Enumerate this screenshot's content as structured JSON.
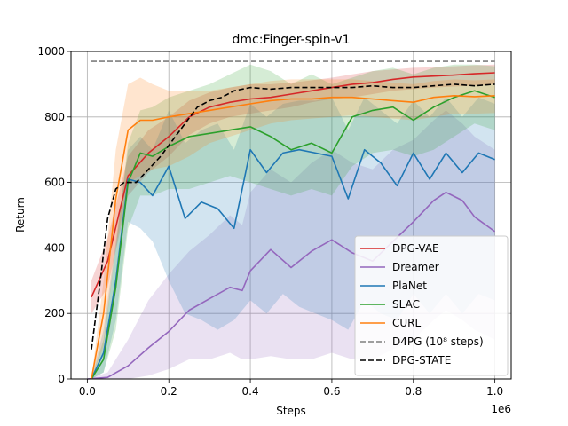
{
  "chart_data": {
    "type": "line",
    "title": "dmc:Finger-spin-v1",
    "xlabel": "Steps",
    "ylabel": "Return",
    "x_offset_label": "1e6",
    "xlim": [
      -0.04,
      1.04
    ],
    "ylim": [
      0,
      1000
    ],
    "xticks": [
      0.0,
      0.2,
      0.4,
      0.6,
      0.8,
      1.0
    ],
    "xtick_labels": [
      "0.0",
      "0.2",
      "0.4",
      "0.6",
      "0.8",
      "1.0"
    ],
    "yticks": [
      0,
      200,
      400,
      600,
      800,
      1000
    ],
    "ytick_labels": [
      "0",
      "200",
      "400",
      "600",
      "800",
      "1000"
    ],
    "grid": true,
    "legend_position": "lower-right",
    "series": [
      {
        "name": "DPG-VAE",
        "color": "#d62728",
        "style": "solid",
        "x": [
          0.01,
          0.05,
          0.1,
          0.15,
          0.2,
          0.25,
          0.3,
          0.35,
          0.4,
          0.45,
          0.5,
          0.55,
          0.6,
          0.65,
          0.7,
          0.75,
          0.8,
          0.85,
          0.9,
          0.95,
          1.0
        ],
        "y": [
          250,
          360,
          620,
          690,
          740,
          800,
          830,
          845,
          855,
          860,
          870,
          880,
          890,
          900,
          905,
          915,
          922,
          925,
          928,
          932,
          935
        ],
        "lower": [
          200,
          280,
          560,
          630,
          680,
          745,
          780,
          800,
          810,
          820,
          830,
          845,
          855,
          860,
          870,
          880,
          885,
          890,
          893,
          896,
          900
        ],
        "upper": [
          300,
          430,
          680,
          760,
          800,
          850,
          875,
          890,
          900,
          900,
          905,
          912,
          920,
          930,
          940,
          945,
          950,
          952,
          955,
          958,
          960
        ]
      },
      {
        "name": "Dreamer",
        "color": "#9467bd",
        "style": "solid",
        "x": [
          0.0,
          0.05,
          0.1,
          0.15,
          0.2,
          0.25,
          0.3,
          0.35,
          0.38,
          0.4,
          0.45,
          0.5,
          0.55,
          0.6,
          0.65,
          0.7,
          0.75,
          0.8,
          0.85,
          0.88,
          0.92,
          0.95,
          1.0
        ],
        "y": [
          0,
          5,
          40,
          95,
          145,
          210,
          245,
          280,
          270,
          330,
          395,
          340,
          390,
          425,
          385,
          360,
          420,
          480,
          545,
          570,
          545,
          495,
          450
        ],
        "lower": [
          0,
          0,
          0,
          10,
          30,
          60,
          60,
          80,
          60,
          60,
          70,
          60,
          60,
          80,
          60,
          60,
          90,
          120,
          180,
          210,
          180,
          150,
          120
        ],
        "upper": [
          0,
          20,
          120,
          240,
          320,
          390,
          440,
          500,
          470,
          570,
          640,
          600,
          660,
          700,
          660,
          640,
          700,
          730,
          790,
          820,
          780,
          740,
          700
        ]
      },
      {
        "name": "PlaNet",
        "color": "#1f77b4",
        "style": "solid",
        "x": [
          0.01,
          0.04,
          0.07,
          0.1,
          0.13,
          0.16,
          0.2,
          0.24,
          0.28,
          0.32,
          0.36,
          0.4,
          0.44,
          0.48,
          0.52,
          0.56,
          0.6,
          0.64,
          0.68,
          0.72,
          0.76,
          0.8,
          0.84,
          0.88,
          0.92,
          0.96,
          1.0
        ],
        "y": [
          0,
          80,
          300,
          610,
          600,
          560,
          650,
          490,
          540,
          520,
          460,
          700,
          630,
          690,
          700,
          690,
          680,
          550,
          700,
          660,
          590,
          690,
          610,
          690,
          630,
          690,
          670
        ],
        "lower": [
          0,
          20,
          180,
          480,
          460,
          420,
          300,
          200,
          180,
          150,
          180,
          240,
          200,
          260,
          220,
          200,
          180,
          150,
          240,
          200,
          180,
          260,
          200,
          260,
          200,
          260,
          240
        ],
        "upper": [
          0,
          150,
          420,
          700,
          740,
          700,
          820,
          720,
          760,
          780,
          700,
          840,
          800,
          840,
          850,
          850,
          860,
          760,
          860,
          820,
          780,
          850,
          800,
          860,
          800,
          860,
          840
        ]
      },
      {
        "name": "SLAC",
        "color": "#2ca02c",
        "style": "solid",
        "x": [
          0.01,
          0.04,
          0.07,
          0.1,
          0.13,
          0.16,
          0.2,
          0.25,
          0.3,
          0.35,
          0.4,
          0.45,
          0.5,
          0.55,
          0.6,
          0.65,
          0.7,
          0.75,
          0.8,
          0.85,
          0.9,
          0.95,
          1.0
        ],
        "y": [
          0,
          60,
          280,
          600,
          690,
          680,
          710,
          740,
          750,
          760,
          770,
          740,
          700,
          720,
          690,
          800,
          820,
          830,
          790,
          830,
          860,
          880,
          860
        ],
        "lower": [
          0,
          20,
          150,
          460,
          560,
          560,
          580,
          580,
          600,
          620,
          600,
          580,
          560,
          580,
          560,
          650,
          690,
          700,
          680,
          700,
          740,
          780,
          760
        ],
        "upper": [
          0,
          120,
          400,
          720,
          820,
          830,
          860,
          880,
          900,
          930,
          960,
          940,
          900,
          930,
          900,
          920,
          940,
          950,
          930,
          950,
          960,
          960,
          955
        ]
      },
      {
        "name": "CURL",
        "color": "#ff7f0e",
        "style": "solid",
        "x": [
          0.01,
          0.04,
          0.07,
          0.1,
          0.13,
          0.16,
          0.2,
          0.25,
          0.3,
          0.35,
          0.4,
          0.45,
          0.5,
          0.55,
          0.6,
          0.65,
          0.7,
          0.75,
          0.8,
          0.85,
          0.9,
          0.95,
          1.0
        ],
        "y": [
          0,
          200,
          550,
          760,
          790,
          790,
          800,
          810,
          820,
          830,
          840,
          850,
          855,
          855,
          860,
          860,
          855,
          850,
          845,
          860,
          865,
          862,
          865
        ],
        "lower": [
          0,
          100,
          400,
          600,
          620,
          640,
          650,
          680,
          720,
          740,
          760,
          780,
          790,
          795,
          800,
          805,
          800,
          795,
          790,
          800,
          810,
          810,
          812
        ],
        "upper": [
          0,
          300,
          700,
          900,
          920,
          900,
          880,
          880,
          880,
          890,
          900,
          910,
          915,
          915,
          915,
          915,
          910,
          905,
          900,
          910,
          915,
          912,
          915
        ]
      },
      {
        "name": "D4PG (10⁸ steps)",
        "color": "#7f7f7f",
        "style": "dashed",
        "x": [
          0.01,
          1.0
        ],
        "y": [
          970,
          970
        ]
      },
      {
        "name": "DPG-STATE",
        "color": "#000000",
        "style": "dashed",
        "x": [
          0.01,
          0.03,
          0.05,
          0.07,
          0.09,
          0.12,
          0.15,
          0.18,
          0.21,
          0.24,
          0.27,
          0.3,
          0.33,
          0.36,
          0.4,
          0.45,
          0.5,
          0.55,
          0.6,
          0.65,
          0.7,
          0.75,
          0.8,
          0.85,
          0.9,
          0.95,
          1.0
        ],
        "y": [
          90,
          280,
          490,
          580,
          600,
          600,
          640,
          680,
          730,
          780,
          830,
          850,
          860,
          880,
          890,
          885,
          890,
          890,
          890,
          890,
          895,
          890,
          890,
          895,
          900,
          895,
          900
        ]
      }
    ]
  }
}
